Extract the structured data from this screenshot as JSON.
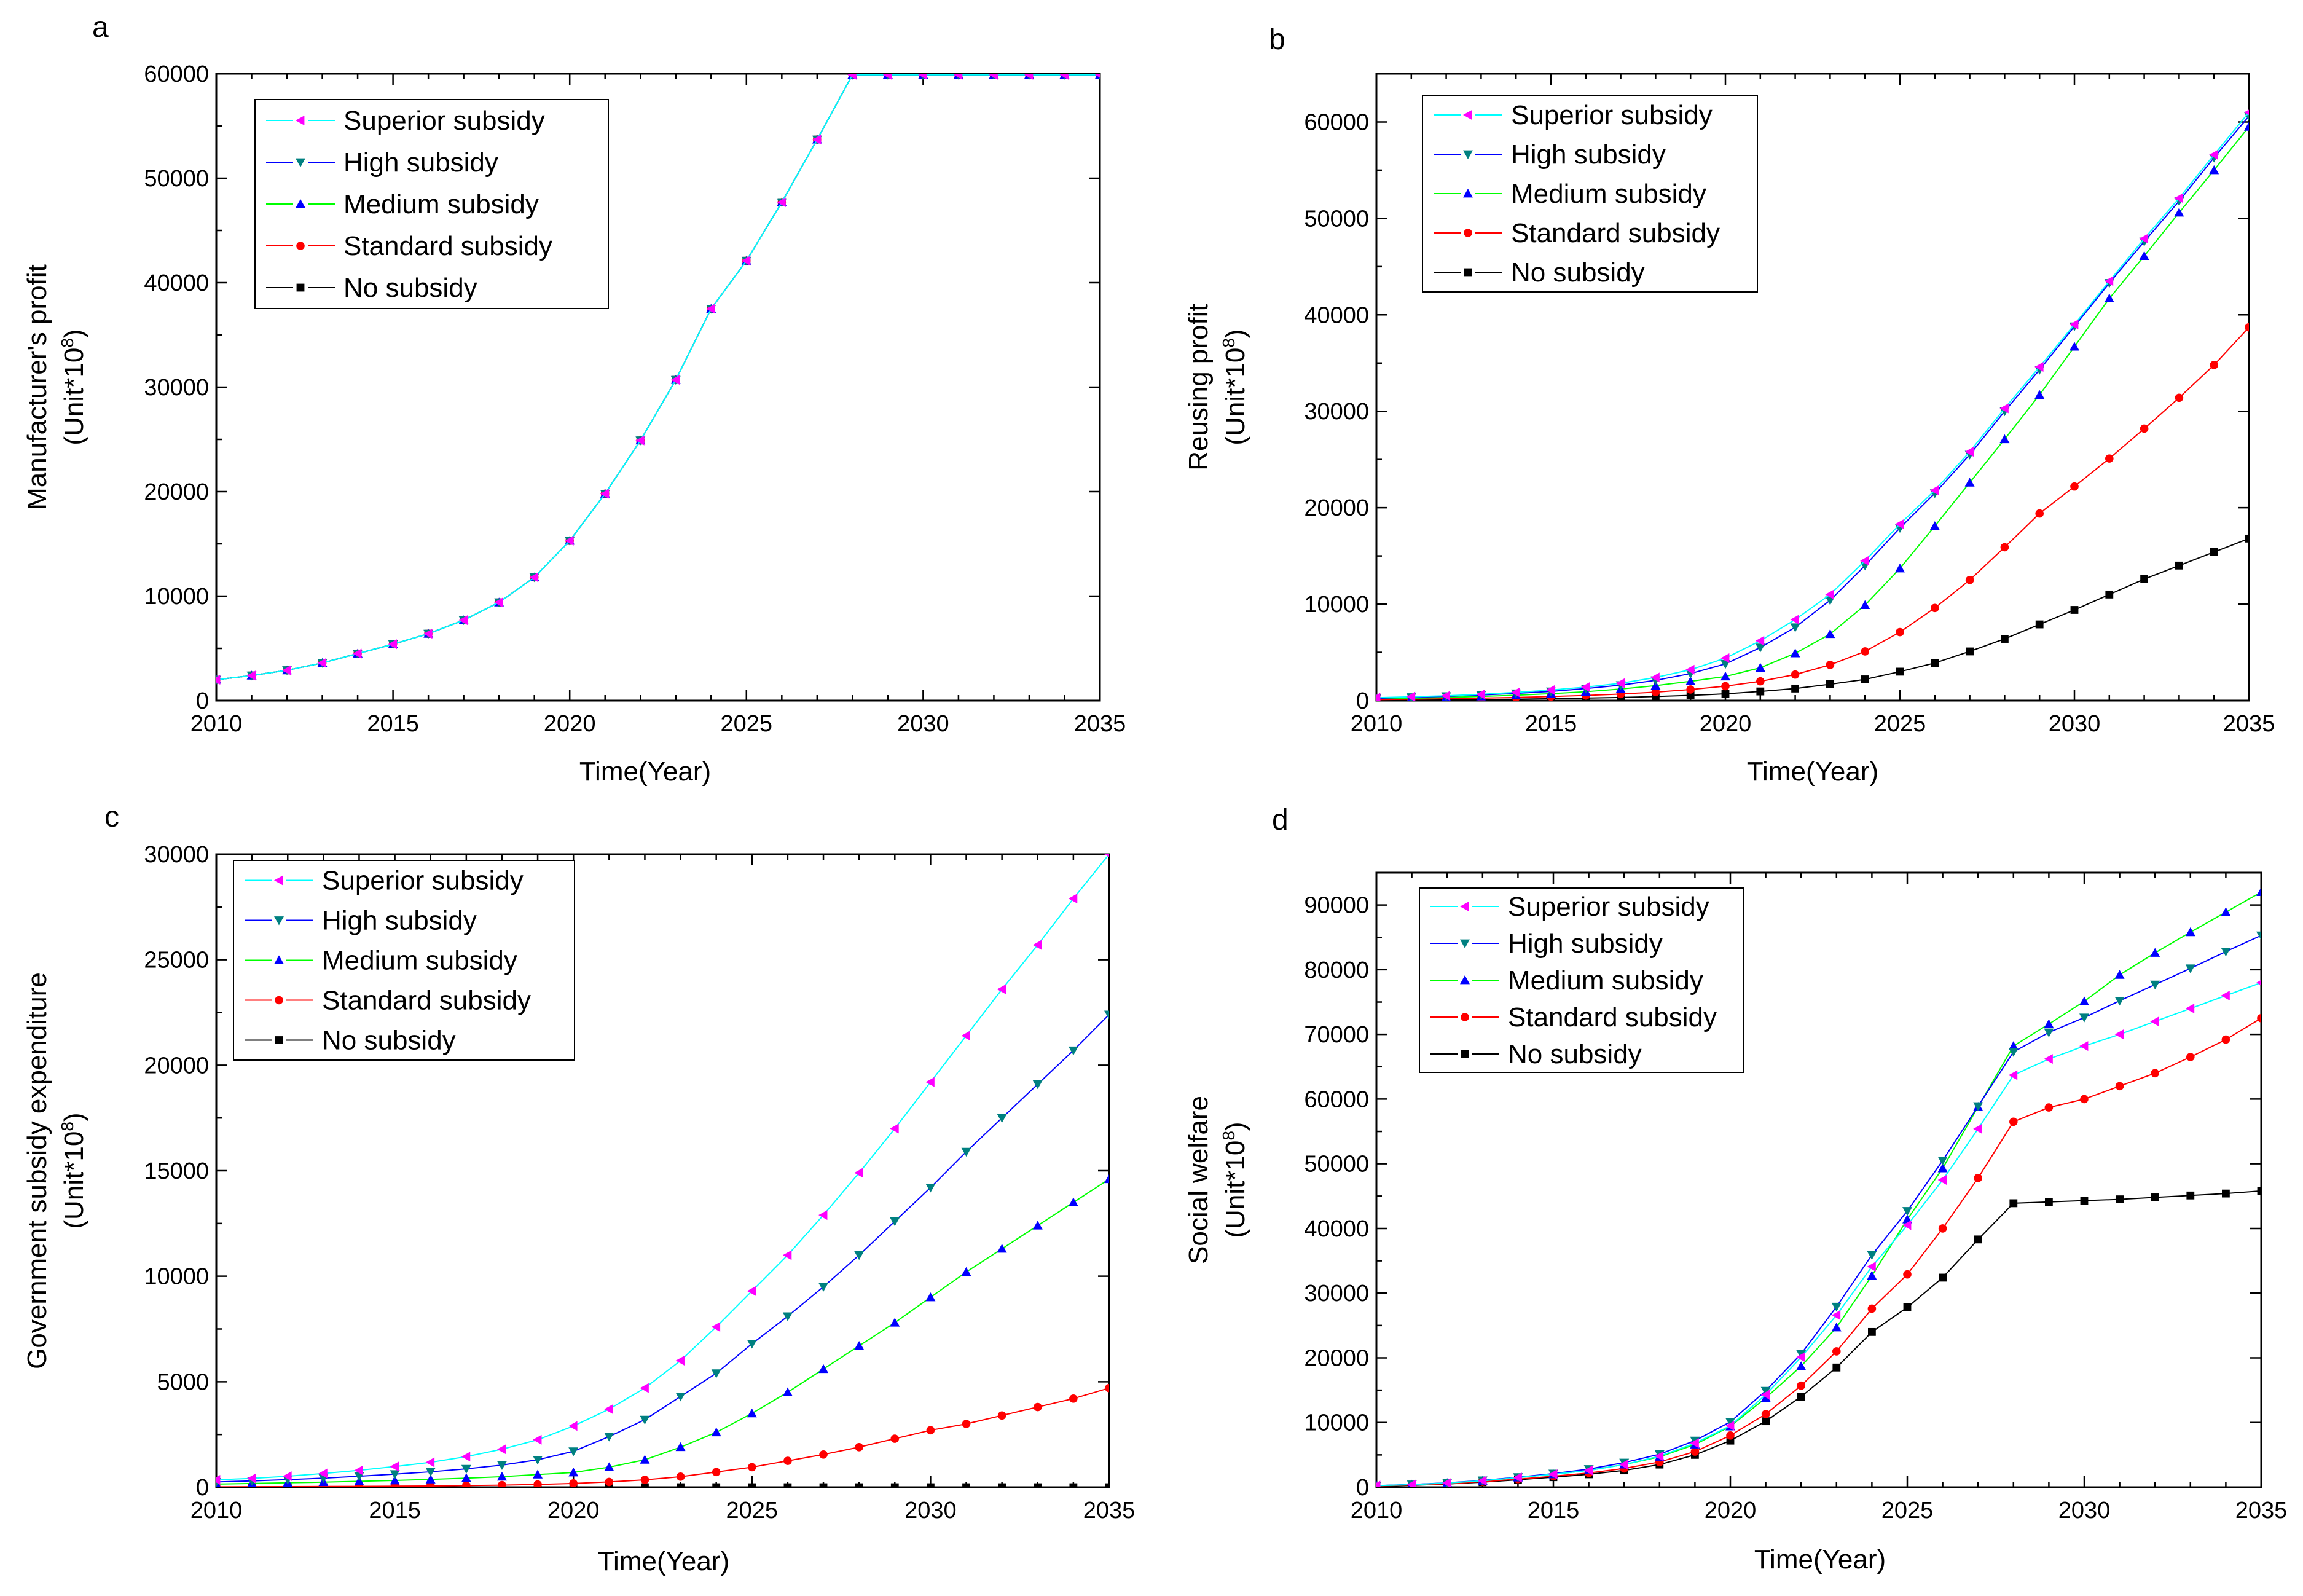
{
  "legend": {
    "entries": [
      "Superior subsidy",
      "High subsidy",
      "Medium subsidy",
      "Standard subsidy",
      "No subsidy"
    ]
  },
  "series_style": [
    {
      "line": "#00ffff",
      "marker": "#ff00ff",
      "shape": "tri-left"
    },
    {
      "line": "#0000ff",
      "marker": "#008080",
      "shape": "tri-down"
    },
    {
      "line": "#00ff00",
      "marker": "#0000ff",
      "shape": "tri-up"
    },
    {
      "line": "#ff0000",
      "marker": "#ff0000",
      "shape": "circle"
    },
    {
      "line": "#000000",
      "marker": "#000000",
      "shape": "square"
    }
  ],
  "chart_data": [
    {
      "type": "line",
      "panel": "a",
      "xlabel": "Time(Year)",
      "ylabel": "Manufacturer's profit",
      "ylabel_unit": "(Unit*10",
      "ylabel_exp": "8",
      "ylabel_close": ")",
      "xlim": [
        2010,
        2035
      ],
      "ylim": [
        0,
        60000
      ],
      "xticks": [
        2010,
        2015,
        2020,
        2025,
        2030,
        2035
      ],
      "yticks": [
        0,
        10000,
        20000,
        30000,
        40000,
        50000,
        60000
      ],
      "legend_position": "top-left",
      "x": [
        2010,
        2011,
        2012,
        2013,
        2014,
        2015,
        2016,
        2017,
        2018,
        2019,
        2020,
        2021,
        2022,
        2023,
        2024,
        2025,
        2026,
        2027,
        2028,
        2029,
        2030,
        2031,
        2032,
        2033,
        2034,
        2035
      ],
      "series": [
        {
          "name": "Superior subsidy",
          "values": [
            2000,
            2400,
            2900,
            3600,
            4500,
            5400,
            6400,
            7700,
            9400,
            11800,
            15300,
            19800,
            24900,
            30700,
            37500,
            42100,
            47700,
            53700,
            59900,
            59900,
            59900,
            59900,
            59900,
            59900,
            59900,
            59900
          ]
        },
        {
          "name": "High subsidy",
          "values": [
            2000,
            2400,
            2900,
            3600,
            4500,
            5400,
            6400,
            7700,
            9400,
            11800,
            15300,
            19800,
            24900,
            30700,
            37500,
            42100,
            47700,
            53700,
            59900,
            59900,
            59900,
            59900,
            59900,
            59900,
            59900,
            59900
          ]
        },
        {
          "name": "Medium subsidy",
          "values": [
            2000,
            2400,
            2900,
            3600,
            4500,
            5400,
            6400,
            7700,
            9400,
            11800,
            15300,
            19800,
            24900,
            30700,
            37500,
            42100,
            47700,
            53700,
            59900,
            59900,
            59900,
            59900,
            59900,
            59900,
            59900,
            59900
          ]
        },
        {
          "name": "Standard subsidy",
          "values": [
            2000,
            2400,
            2900,
            3600,
            4500,
            5400,
            6400,
            7700,
            9400,
            11800,
            15300,
            19800,
            24900,
            30700,
            37500,
            42100,
            47700,
            53700,
            59900,
            59900,
            59900,
            59900,
            59900,
            59900,
            59900,
            59900
          ]
        },
        {
          "name": "No subsidy",
          "values": [
            2000,
            2400,
            2900,
            3600,
            4500,
            5400,
            6400,
            7700,
            9400,
            11800,
            15300,
            19800,
            24900,
            30700,
            37500,
            42100,
            47700,
            53700,
            59900,
            59900,
            59900,
            59900,
            59900,
            59900,
            59900,
            59900
          ]
        }
      ]
    },
    {
      "type": "line",
      "panel": "b",
      "xlabel": "Time(Year)",
      "ylabel": "Reusing profit",
      "ylabel_unit": "(Unit*10",
      "ylabel_exp": "8",
      "ylabel_close": ")",
      "xlim": [
        2010,
        2035
      ],
      "ylim": [
        0,
        65000
      ],
      "xticks": [
        2010,
        2015,
        2020,
        2025,
        2030,
        2035
      ],
      "yticks": [
        0,
        10000,
        20000,
        30000,
        40000,
        50000,
        60000
      ],
      "legend_position": "top-left",
      "x": [
        2010,
        2011,
        2012,
        2013,
        2014,
        2015,
        2016,
        2017,
        2018,
        2019,
        2020,
        2021,
        2022,
        2023,
        2024,
        2025,
        2026,
        2027,
        2028,
        2029,
        2030,
        2031,
        2032,
        2033,
        2034,
        2035
      ],
      "series": [
        {
          "name": "Superior subsidy",
          "values": [
            300,
            400,
            500,
            650,
            850,
            1100,
            1400,
            1800,
            2400,
            3200,
            4400,
            6200,
            8400,
            11000,
            14500,
            18300,
            21800,
            25800,
            30300,
            34600,
            39000,
            43500,
            47900,
            52100,
            56600,
            61000
          ]
        },
        {
          "name": "High subsidy",
          "values": [
            250,
            350,
            450,
            580,
            750,
            950,
            1250,
            1600,
            2100,
            2800,
            3800,
            5500,
            7600,
            10400,
            14000,
            17900,
            21500,
            25500,
            30000,
            34300,
            38800,
            43300,
            47600,
            51800,
            56300,
            60600
          ]
        },
        {
          "name": "Medium subsidy",
          "values": [
            180,
            250,
            330,
            430,
            560,
            720,
            920,
            1200,
            1550,
            2000,
            2500,
            3400,
            4900,
            6900,
            9900,
            13700,
            18100,
            22600,
            27100,
            31700,
            36700,
            41700,
            46100,
            50600,
            55000,
            59500
          ]
        },
        {
          "name": "Standard subsidy",
          "values": [
            100,
            150,
            200,
            260,
            330,
            420,
            530,
            680,
            880,
            1150,
            1500,
            2000,
            2700,
            3700,
            5100,
            7100,
            9600,
            12500,
            15900,
            19400,
            22200,
            25100,
            28200,
            31400,
            34800,
            38700
          ]
        },
        {
          "name": "No subsidy",
          "values": [
            30,
            50,
            80,
            110,
            150,
            200,
            260,
            330,
            420,
            540,
            700,
            950,
            1250,
            1700,
            2200,
            3000,
            3900,
            5100,
            6400,
            7900,
            9400,
            11000,
            12600,
            14000,
            15400,
            16800
          ]
        }
      ]
    },
    {
      "type": "line",
      "panel": "c",
      "xlabel": "Time(Year)",
      "ylabel": "Government subsidy expenditure",
      "ylabel_unit": "(Unit*10",
      "ylabel_exp": "8",
      "ylabel_close": ")",
      "xlim": [
        2010,
        2035
      ],
      "ylim": [
        0,
        30000
      ],
      "xticks": [
        2010,
        2015,
        2020,
        2025,
        2030,
        2035
      ],
      "yticks": [
        0,
        5000,
        10000,
        15000,
        20000,
        25000,
        30000
      ],
      "legend_position": "top-left",
      "x": [
        2010,
        2011,
        2012,
        2013,
        2014,
        2015,
        2016,
        2017,
        2018,
        2019,
        2020,
        2021,
        2022,
        2023,
        2024,
        2025,
        2026,
        2027,
        2028,
        2029,
        2030,
        2031,
        2032,
        2033,
        2034,
        2035
      ],
      "series": [
        {
          "name": "Superior subsidy",
          "values": [
            350,
            420,
            520,
            650,
            800,
            980,
            1180,
            1450,
            1800,
            2250,
            2900,
            3700,
            4700,
            6000,
            7600,
            9300,
            11000,
            12900,
            14900,
            17000,
            19200,
            21400,
            23600,
            25700,
            27900,
            30000
          ]
        },
        {
          "name": "High subsidy",
          "values": [
            250,
            300,
            360,
            430,
            520,
            620,
            730,
            870,
            1050,
            1300,
            1700,
            2400,
            3200,
            4300,
            5400,
            6800,
            8100,
            9500,
            11000,
            12600,
            14200,
            15900,
            17500,
            19100,
            20700,
            22400
          ]
        },
        {
          "name": "Medium subsidy",
          "values": [
            150,
            180,
            210,
            240,
            280,
            320,
            370,
            430,
            500,
            600,
            700,
            950,
            1300,
            1900,
            2600,
            3500,
            4500,
            5600,
            6700,
            7800,
            9000,
            10200,
            11300,
            12400,
            13500,
            14600
          ]
        },
        {
          "name": "Standard subsidy",
          "values": [
            20,
            25,
            30,
            35,
            40,
            50,
            60,
            80,
            100,
            130,
            180,
            250,
            350,
            500,
            720,
            950,
            1250,
            1550,
            1900,
            2300,
            2700,
            3000,
            3400,
            3800,
            4200,
            4700
          ]
        },
        {
          "name": "No subsidy",
          "values": [
            0,
            0,
            0,
            0,
            0,
            0,
            0,
            0,
            0,
            0,
            0,
            0,
            0,
            0,
            0,
            0,
            0,
            0,
            0,
            0,
            0,
            0,
            0,
            0,
            0,
            0
          ]
        }
      ]
    },
    {
      "type": "line",
      "panel": "d",
      "xlabel": "Time(Year)",
      "ylabel": "Social welfare",
      "ylabel_unit": "(Unit*10",
      "ylabel_exp": "8",
      "ylabel_close": ")",
      "xlim": [
        2010,
        2035
      ],
      "ylim": [
        0,
        95000
      ],
      "xticks": [
        2010,
        2015,
        2020,
        2025,
        2030,
        2035
      ],
      "yticks": [
        0,
        10000,
        20000,
        30000,
        40000,
        50000,
        60000,
        70000,
        80000,
        90000
      ],
      "legend_position": "top-left",
      "x": [
        2010,
        2011,
        2012,
        2013,
        2014,
        2015,
        2016,
        2017,
        2018,
        2019,
        2020,
        2021,
        2022,
        2023,
        2024,
        2025,
        2026,
        2027,
        2028,
        2029,
        2030,
        2031,
        2032,
        2033,
        2034,
        2035
      ],
      "series": [
        {
          "name": "Superior subsidy",
          "values": [
            250,
            400,
            650,
            1000,
            1500,
            2000,
            2600,
            3500,
            4800,
            6800,
            9500,
            14300,
            20100,
            26600,
            34100,
            40500,
            47500,
            55400,
            63700,
            66200,
            68200,
            70000,
            72000,
            74000,
            76000,
            78000
          ]
        },
        {
          "name": "High subsidy",
          "values": [
            250,
            420,
            680,
            1050,
            1550,
            2100,
            2800,
            3800,
            5100,
            7200,
            10100,
            14900,
            20600,
            27900,
            35900,
            42700,
            50500,
            58900,
            67300,
            70300,
            72600,
            75200,
            77700,
            80200,
            82800,
            85300
          ]
        },
        {
          "name": "Medium subsidy",
          "values": [
            250,
            400,
            650,
            1000,
            1500,
            2000,
            2600,
            3500,
            4700,
            6600,
            9400,
            13800,
            18700,
            24700,
            32700,
            41400,
            49300,
            58800,
            68200,
            71600,
            75100,
            79200,
            82600,
            85800,
            88900,
            92000
          ]
        },
        {
          "name": "Standard subsidy",
          "values": [
            200,
            350,
            550,
            850,
            1250,
            1700,
            2200,
            2900,
            3900,
            5500,
            8000,
            11300,
            15700,
            21000,
            27600,
            32900,
            40000,
            47800,
            56500,
            58700,
            60000,
            62000,
            64000,
            66500,
            69200,
            72500
          ]
        },
        {
          "name": "No subsidy",
          "values": [
            150,
            300,
            500,
            780,
            1150,
            1550,
            2000,
            2600,
            3500,
            5000,
            7200,
            10200,
            14000,
            18500,
            24000,
            27800,
            32400,
            38300,
            43900,
            44100,
            44300,
            44500,
            44800,
            45100,
            45400,
            45800
          ]
        }
      ]
    }
  ]
}
